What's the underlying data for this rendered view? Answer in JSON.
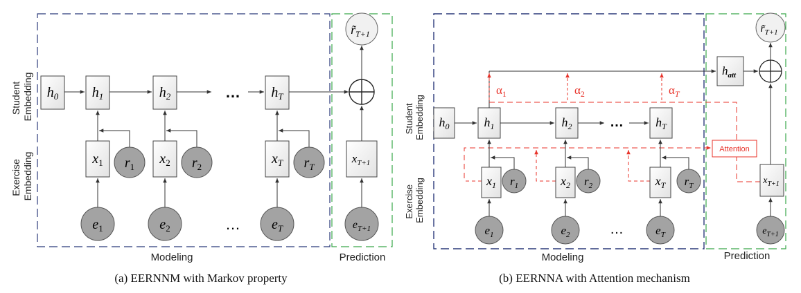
{
  "left": {
    "caption": "(a) EERNNM with Markov property",
    "modeling_label": "Modeling",
    "prediction_label": "Prediction",
    "student_label": [
      "Student",
      "Embedding"
    ],
    "exercise_label": [
      "Exercise",
      "Embedding"
    ],
    "h": [
      "h0",
      "h1",
      "h2",
      "hT"
    ],
    "x": [
      "x1",
      "x2",
      "xT",
      "xT+1"
    ],
    "r": [
      "r1",
      "r2",
      "rT"
    ],
    "e": [
      "e1",
      "e2",
      "eT",
      "eT+1"
    ],
    "output": "r̃T+1",
    "ellipsis": "…"
  },
  "right": {
    "caption": "(b) EERNNA with Attention mechanism",
    "modeling_label": "Modeling",
    "prediction_label": "Prediction",
    "student_label": [
      "Student",
      "Embedding"
    ],
    "exercise_label": [
      "Exercise",
      "Embedding"
    ],
    "h": [
      "h0",
      "h1",
      "h2",
      "hT",
      "hatt"
    ],
    "x": [
      "x1",
      "x2",
      "xT",
      "xT+1"
    ],
    "r": [
      "r1",
      "r2",
      "rT"
    ],
    "e": [
      "e1",
      "e2",
      "eT",
      "eT+1"
    ],
    "alpha": [
      "α1",
      "α2",
      "αT"
    ],
    "attention_label": "Attention",
    "output": "r̃T+1",
    "ellipsis": "…"
  },
  "colors": {
    "node_fill": "#a3a3a3",
    "modeling_border": "#2b3a7a",
    "prediction_border": "#3aa84a",
    "attention": "#e8332a",
    "line": "#333333"
  }
}
